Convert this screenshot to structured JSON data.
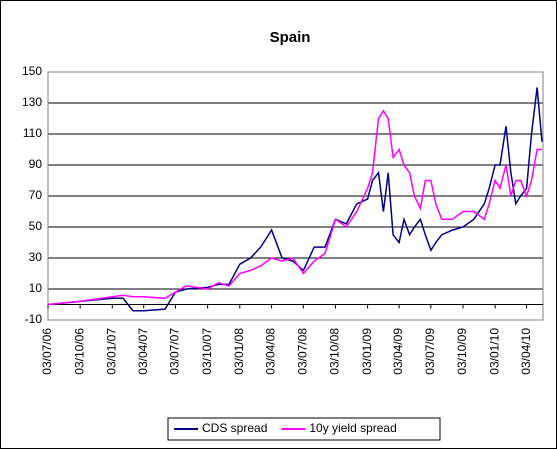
{
  "chart_data": {
    "type": "line",
    "title": "Spain",
    "x": [
      "03/07/06",
      "03/10/06",
      "03/01/07",
      "03/02/07",
      "03/03/07",
      "03/04/07",
      "03/06/07",
      "03/07/07",
      "03/08/07",
      "03/10/07",
      "03/11/07",
      "03/12/07",
      "03/01/08",
      "03/02/08",
      "03/03/08",
      "03/04/08",
      "03/05/08",
      "03/06/08",
      "03/07/08",
      "03/08/08",
      "03/09/08",
      "03/10/08",
      "03/11/08",
      "03/12/08",
      "03/01/09",
      "17/01/09",
      "03/02/09",
      "17/02/09",
      "03/03/09",
      "17/03/09",
      "03/04/09",
      "17/04/09",
      "03/05/09",
      "17/05/09",
      "03/06/09",
      "17/06/09",
      "03/07/09",
      "17/07/09",
      "03/08/09",
      "03/09/09",
      "03/10/09",
      "03/11/09",
      "03/12/09",
      "17/12/09",
      "03/01/10",
      "17/01/10",
      "03/02/10",
      "17/02/10",
      "03/03/10",
      "17/03/10",
      "03/04/10",
      "17/04/10",
      "03/05/10",
      "17/05/10"
    ],
    "series": [
      {
        "name": "CDS spread",
        "color": "#000080",
        "values": [
          0,
          2,
          4,
          4,
          -4,
          -4,
          -3,
          8,
          10,
          11,
          13,
          13,
          26,
          30,
          37,
          48,
          30,
          28,
          22,
          37,
          37,
          55,
          52,
          65,
          68,
          80,
          85,
          60,
          85,
          45,
          40,
          55,
          45,
          50,
          55,
          45,
          35,
          40,
          45,
          48,
          50,
          55,
          65,
          75,
          90,
          90,
          115,
          85,
          65,
          70,
          75,
          110,
          140,
          105
        ]
      },
      {
        "name": "10y yield spread",
        "color": "#ff00ff",
        "values": [
          0,
          2,
          5,
          6,
          5,
          5,
          4,
          8,
          12,
          10,
          14,
          12,
          20,
          22,
          25,
          30,
          28,
          30,
          20,
          28,
          33,
          55,
          50,
          60,
          75,
          85,
          120,
          125,
          120,
          95,
          100,
          90,
          85,
          70,
          62,
          80,
          80,
          65,
          55,
          55,
          60,
          60,
          55,
          65,
          80,
          75,
          90,
          70,
          80,
          80,
          70,
          80,
          100,
          100
        ]
      }
    ],
    "xlim": [
      "03/07/06",
      "20/05/10"
    ],
    "xticks": [
      "03/07/06",
      "03/10/06",
      "03/01/07",
      "03/04/07",
      "03/07/07",
      "03/10/07",
      "03/01/08",
      "03/04/08",
      "03/07/08",
      "03/10/08",
      "03/01/09",
      "03/04/09",
      "03/07/09",
      "03/10/09",
      "03/01/10",
      "03/04/10"
    ],
    "ylim": [
      -10,
      150
    ],
    "yticks": [
      -10,
      10,
      30,
      50,
      70,
      90,
      110,
      130,
      150
    ],
    "grid": true,
    "legend": "bottom"
  }
}
